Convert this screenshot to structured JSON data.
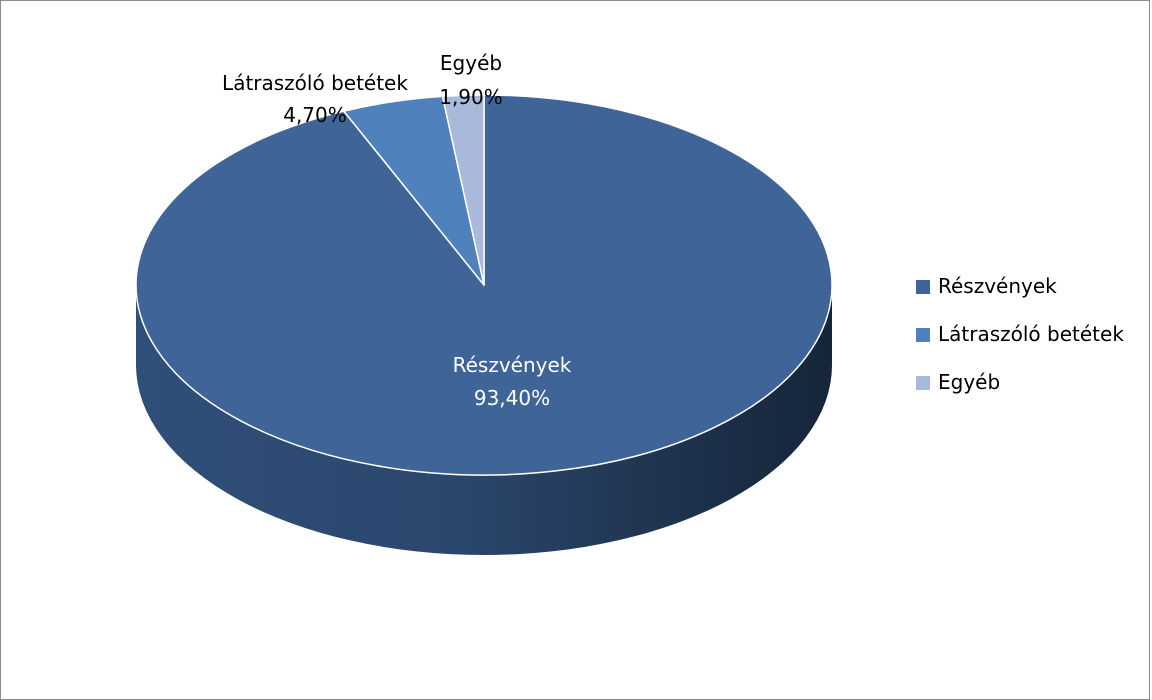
{
  "chart_data": {
    "type": "pie",
    "title": "",
    "categories": [
      "Részvények",
      "Látraszóló betétek",
      "Egyéb"
    ],
    "values": [
      93.4,
      4.7,
      1.9
    ],
    "value_labels": [
      "93,40%",
      "4,70%",
      "1,90%"
    ],
    "colors": [
      "#3f6497",
      "#4f81bd",
      "#a8b9d9"
    ],
    "legend_position": "right",
    "three_d": true
  }
}
